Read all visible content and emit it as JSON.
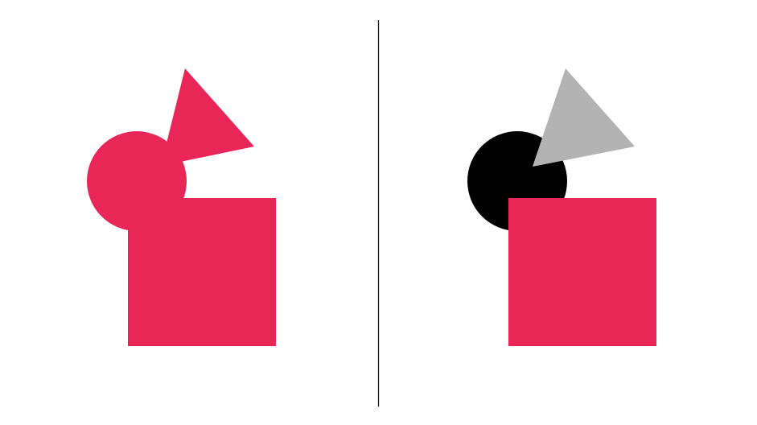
{
  "colors": {
    "background": "#ffffff",
    "accent": "#e82658",
    "black": "#000000",
    "gray": "#b3b3b3",
    "divider": "#1a1a1a"
  },
  "panels": [
    {
      "id": "left",
      "shapes": [
        {
          "kind": "circle",
          "color_key": "accent"
        },
        {
          "kind": "triangle",
          "color_key": "accent"
        },
        {
          "kind": "square",
          "color_key": "accent"
        }
      ]
    },
    {
      "id": "right",
      "shapes": [
        {
          "kind": "circle",
          "color_key": "black"
        },
        {
          "kind": "triangle",
          "color_key": "gray"
        },
        {
          "kind": "square",
          "color_key": "accent"
        }
      ]
    }
  ]
}
